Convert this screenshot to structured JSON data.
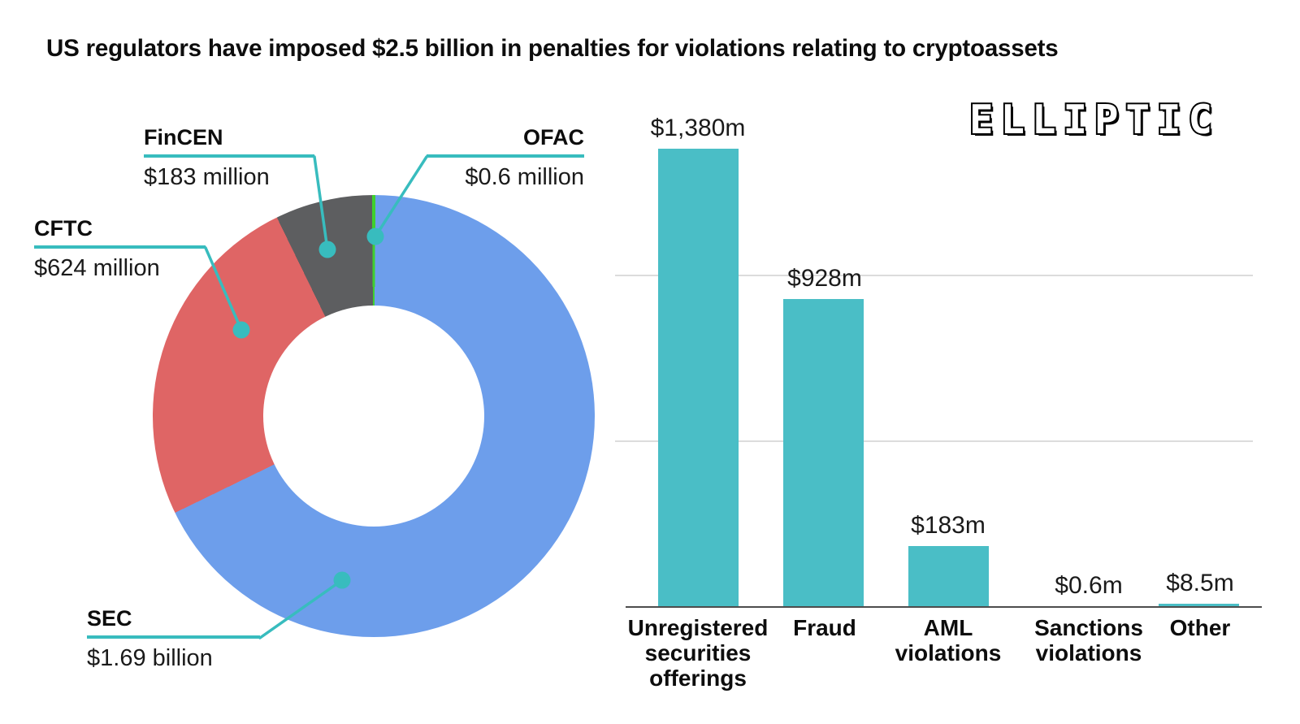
{
  "title": "US regulators have imposed $2.5 billion in penalties for violations relating to cryptoassets",
  "logo": {
    "text": "ELLIPTIC"
  },
  "donut_callouts": [
    {
      "name": "SEC",
      "value": "$1.69 billion"
    },
    {
      "name": "CFTC",
      "value": "$624 million"
    },
    {
      "name": "FinCEN",
      "value": "$183 million"
    },
    {
      "name": "OFAC",
      "value": "$0.6 million"
    }
  ],
  "chart_data": [
    {
      "type": "pie",
      "subtype": "donut",
      "labels": [
        "SEC",
        "CFTC",
        "FinCEN",
        "OFAC"
      ],
      "values_millions": [
        1690,
        624,
        183,
        0.6
      ],
      "display_values": [
        "$1.69 billion",
        "$624 million",
        "$183 million",
        "$0.6 million"
      ],
      "colors": [
        "#6d9eeb",
        "#df6565",
        "#5d5e60",
        "#3fd02e"
      ],
      "donut_hole_ratio": 0.5,
      "start_angle_deg": 0,
      "direction": "clockwise"
    },
    {
      "type": "bar",
      "categories": [
        "Unregistered securities offerings",
        "Fraud",
        "AML violations",
        "Sanctions violations",
        "Other"
      ],
      "categories_lines": [
        [
          "Unregistered",
          "securities",
          "offerings"
        ],
        [
          "Fraud"
        ],
        [
          "AML",
          "violations"
        ],
        [
          "Sanctions",
          "violations"
        ],
        [
          "Other"
        ]
      ],
      "values": [
        1380,
        928,
        183,
        0.6,
        8.5
      ],
      "value_labels": [
        "$1,380m",
        "$928m",
        "$183m",
        "$0.6m",
        "$8.5m"
      ],
      "bar_color": "#4abec6",
      "ylabel": "",
      "xlabel": "",
      "ylim": [
        0,
        1500
      ],
      "gridlines_millions": [
        500,
        1000
      ],
      "grid_on": true,
      "legend_position": "none"
    }
  ]
}
